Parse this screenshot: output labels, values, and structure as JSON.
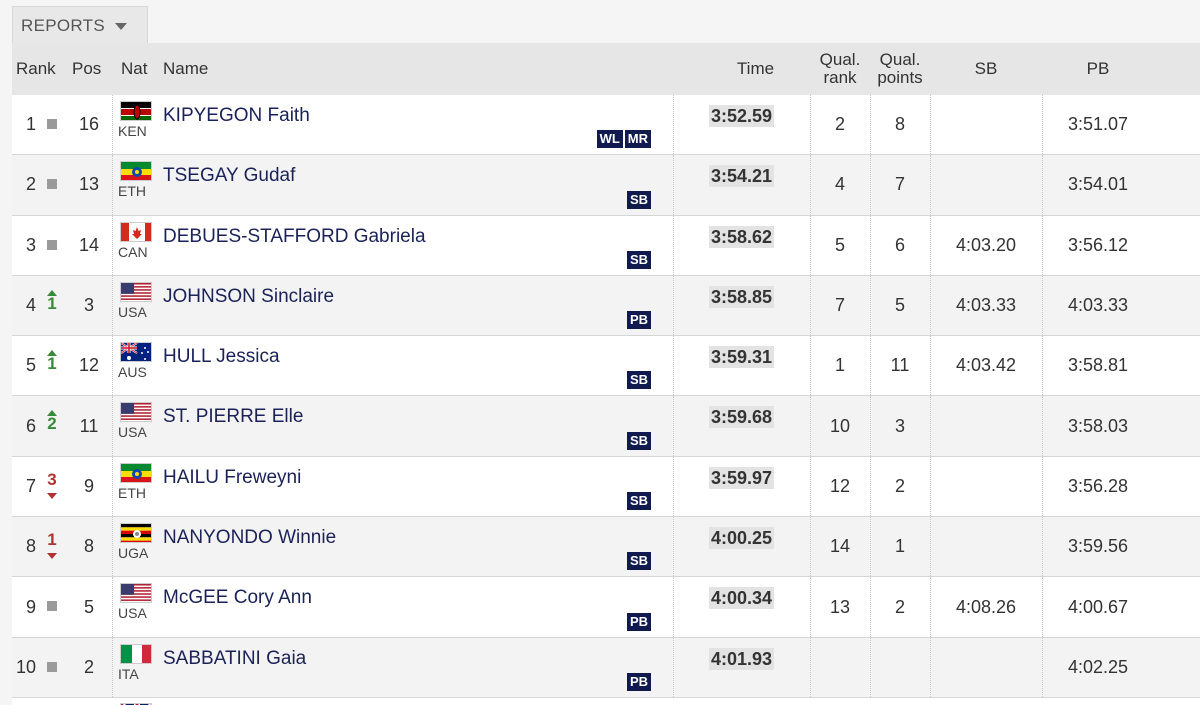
{
  "reports": {
    "label": "REPORTS",
    "caret": "caret-down-icon"
  },
  "headers": {
    "rank": "Rank",
    "pos": "Pos",
    "nat": "Nat",
    "name": "Name",
    "time": "Time",
    "qual_rank_1": "Qual.",
    "qual_rank_2": "rank",
    "qual_points_1": "Qual.",
    "qual_points_2": "points",
    "sb": "SB",
    "pb": "PB"
  },
  "rows": [
    {
      "rank": "1",
      "change": "same",
      "change_value": "",
      "pos": "16",
      "nat": "KEN",
      "flag": "kenya-flag-icon",
      "name": "KIPYEGON Faith",
      "badges": [
        "WL",
        "MR"
      ],
      "time": "3:52.59",
      "qual_rank": "2",
      "qual_points": "8",
      "sb": "",
      "pb": "3:51.07"
    },
    {
      "rank": "2",
      "change": "same",
      "change_value": "",
      "pos": "13",
      "nat": "ETH",
      "flag": "ethiopia-flag-icon",
      "name": "TSEGAY Gudaf",
      "badges": [
        "SB"
      ],
      "time": "3:54.21",
      "qual_rank": "4",
      "qual_points": "7",
      "sb": "",
      "pb": "3:54.01"
    },
    {
      "rank": "3",
      "change": "same",
      "change_value": "",
      "pos": "14",
      "nat": "CAN",
      "flag": "canada-flag-icon",
      "name": "DEBUES-STAFFORD Gabriela",
      "badges": [
        "SB"
      ],
      "time": "3:58.62",
      "qual_rank": "5",
      "qual_points": "6",
      "sb": "4:03.20",
      "pb": "3:56.12"
    },
    {
      "rank": "4",
      "change": "up",
      "change_value": "1",
      "pos": "3",
      "nat": "USA",
      "flag": "usa-flag-icon",
      "name": "JOHNSON Sinclaire",
      "badges": [
        "PB"
      ],
      "time": "3:58.85",
      "qual_rank": "7",
      "qual_points": "5",
      "sb": "4:03.33",
      "pb": "4:03.33"
    },
    {
      "rank": "5",
      "change": "up",
      "change_value": "1",
      "pos": "12",
      "nat": "AUS",
      "flag": "australia-flag-icon",
      "name": "HULL Jessica",
      "badges": [
        "SB"
      ],
      "time": "3:59.31",
      "qual_rank": "1",
      "qual_points": "11",
      "sb": "4:03.42",
      "pb": "3:58.81"
    },
    {
      "rank": "6",
      "change": "up",
      "change_value": "2",
      "pos": "11",
      "nat": "USA",
      "flag": "usa-flag-icon",
      "name": "ST. PIERRE Elle",
      "badges": [
        "SB"
      ],
      "time": "3:59.68",
      "qual_rank": "10",
      "qual_points": "3",
      "sb": "",
      "pb": "3:58.03"
    },
    {
      "rank": "7",
      "change": "down",
      "change_value": "3",
      "pos": "9",
      "nat": "ETH",
      "flag": "ethiopia-flag-icon",
      "name": "HAILU Freweyni",
      "badges": [
        "SB"
      ],
      "time": "3:59.97",
      "qual_rank": "12",
      "qual_points": "2",
      "sb": "",
      "pb": "3:56.28"
    },
    {
      "rank": "8",
      "change": "down",
      "change_value": "1",
      "pos": "8",
      "nat": "UGA",
      "flag": "uganda-flag-icon",
      "name": "NANYONDO Winnie",
      "badges": [
        "SB"
      ],
      "time": "4:00.25",
      "qual_rank": "14",
      "qual_points": "1",
      "sb": "",
      "pb": "3:59.56"
    },
    {
      "rank": "9",
      "change": "same",
      "change_value": "",
      "pos": "5",
      "nat": "USA",
      "flag": "usa-flag-icon",
      "name": "McGEE Cory Ann",
      "badges": [
        "PB"
      ],
      "time": "4:00.34",
      "qual_rank": "13",
      "qual_points": "2",
      "sb": "4:08.26",
      "pb": "4:00.67"
    },
    {
      "rank": "10",
      "change": "same",
      "change_value": "",
      "pos": "2",
      "nat": "ITA",
      "flag": "italy-flag-icon",
      "name": "SABBATINI Gaia",
      "badges": [
        "PB"
      ],
      "time": "4:01.93",
      "qual_rank": "",
      "qual_points": "",
      "sb": "",
      "pb": "4:02.25"
    }
  ],
  "partial_row_flag": "uk-flag-icon",
  "colors": {
    "badge_bg": "#101a4f",
    "name_text": "#1a2257",
    "up": "#3a8a3a",
    "down": "#b23232",
    "header_bg": "#e6e6e6"
  }
}
